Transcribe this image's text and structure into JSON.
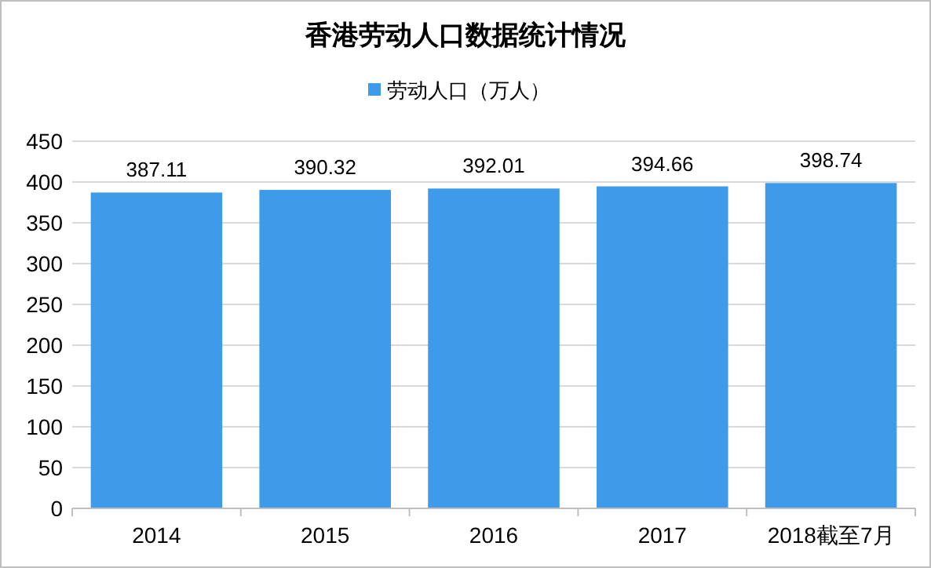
{
  "chart_data": {
    "type": "bar",
    "title": "香港劳动人口数据统计情况",
    "categories": [
      "2014",
      "2015",
      "2016",
      "2017",
      "2018截至7月"
    ],
    "series": [
      {
        "name": "劳动人口（万人）",
        "color": "#3d9be9",
        "values": [
          387.11,
          390.32,
          392.01,
          394.66,
          398.74
        ]
      }
    ],
    "ylim": [
      0,
      450
    ],
    "yticks": [
      0,
      50,
      100,
      150,
      200,
      250,
      300,
      350,
      400,
      450
    ],
    "grid": "y",
    "legend": "top",
    "data_labels": true
  }
}
